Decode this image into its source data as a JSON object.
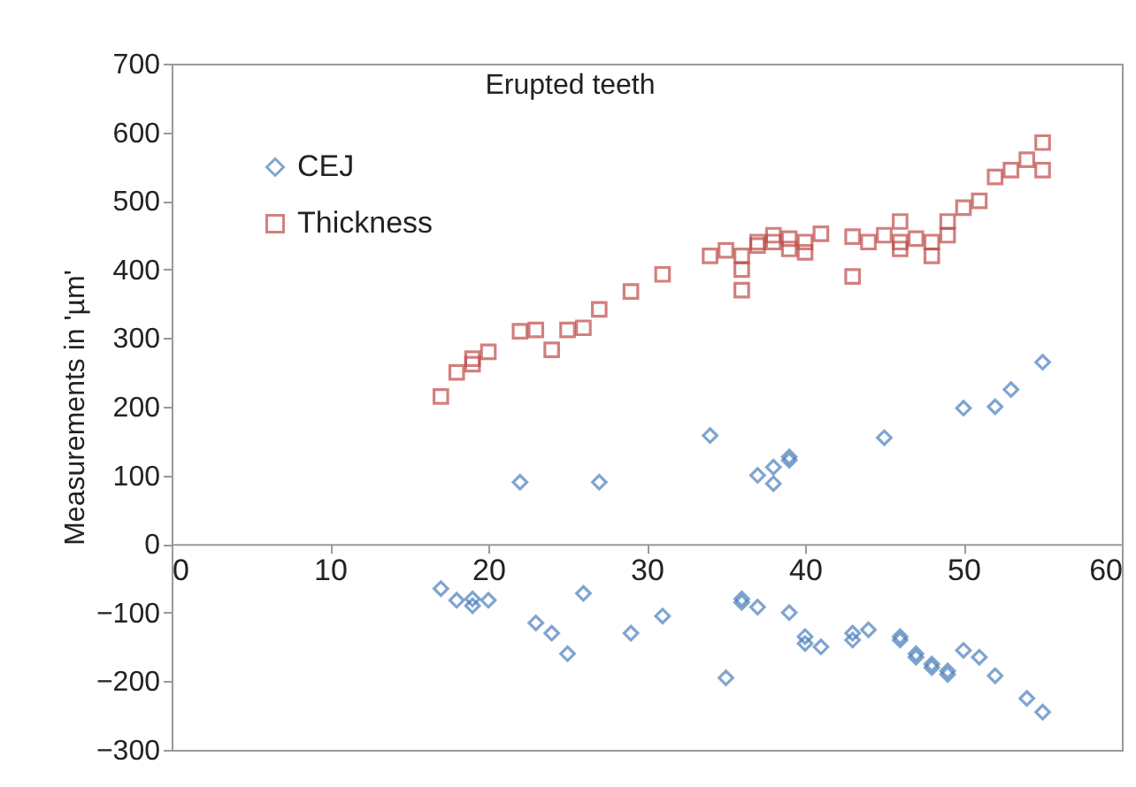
{
  "chart_data": {
    "type": "scatter",
    "title": "Erupted teeth",
    "ylabel": "Measurements in 'µm'",
    "xlim": [
      0,
      60
    ],
    "xticks": [
      0,
      10,
      20,
      30,
      40,
      50,
      60
    ],
    "ylim": [
      -300,
      700
    ],
    "yticks": [
      -300,
      -200,
      -100,
      0,
      100,
      200,
      300,
      400,
      500,
      600,
      700
    ],
    "grid": false,
    "legend": "top left",
    "series": [
      {
        "name": "CEJ",
        "color": "#4a7ebb",
        "marker": "diamond",
        "x": [
          22,
          27,
          34,
          37,
          38,
          38,
          39,
          39,
          45,
          50,
          52,
          53,
          55,
          17,
          18,
          19,
          19,
          20,
          23,
          24,
          25,
          26,
          29,
          31,
          35,
          36,
          36,
          37,
          39,
          40,
          40,
          41,
          43,
          43,
          44,
          46,
          46,
          47,
          47,
          48,
          48,
          49,
          49,
          50,
          51,
          52,
          54,
          55
        ],
        "values": [
          90,
          90,
          158,
          100,
          88,
          112,
          122,
          127,
          155,
          198,
          200,
          225,
          265,
          -65,
          -82,
          -90,
          -80,
          -82,
          -115,
          -130,
          -160,
          -72,
          -130,
          -105,
          -195,
          -80,
          -85,
          -92,
          -100,
          -135,
          -145,
          -150,
          -130,
          -140,
          -125,
          -135,
          -140,
          -160,
          -165,
          -175,
          -180,
          -185,
          -190,
          -155,
          -165,
          -192,
          -225,
          -245
        ]
      },
      {
        "name": "Thickness",
        "color": "#be4b48",
        "marker": "square",
        "x": [
          17,
          18,
          19,
          19,
          20,
          22,
          23,
          24,
          25,
          26,
          27,
          29,
          31,
          34,
          35,
          36,
          36,
          36,
          37,
          37,
          38,
          38,
          39,
          39,
          40,
          40,
          41,
          43,
          43,
          44,
          45,
          46,
          46,
          46,
          47,
          48,
          48,
          49,
          49,
          50,
          51,
          52,
          53,
          54,
          55,
          55
        ],
        "values": [
          215,
          250,
          262,
          270,
          280,
          310,
          312,
          283,
          312,
          315,
          342,
          368,
          393,
          420,
          428,
          400,
          370,
          420,
          435,
          440,
          450,
          440,
          445,
          430,
          440,
          425,
          452,
          448,
          390,
          440,
          450,
          470,
          430,
          440,
          445,
          420,
          440,
          450,
          470,
          490,
          500,
          535,
          545,
          560,
          585,
          545
        ]
      }
    ]
  }
}
